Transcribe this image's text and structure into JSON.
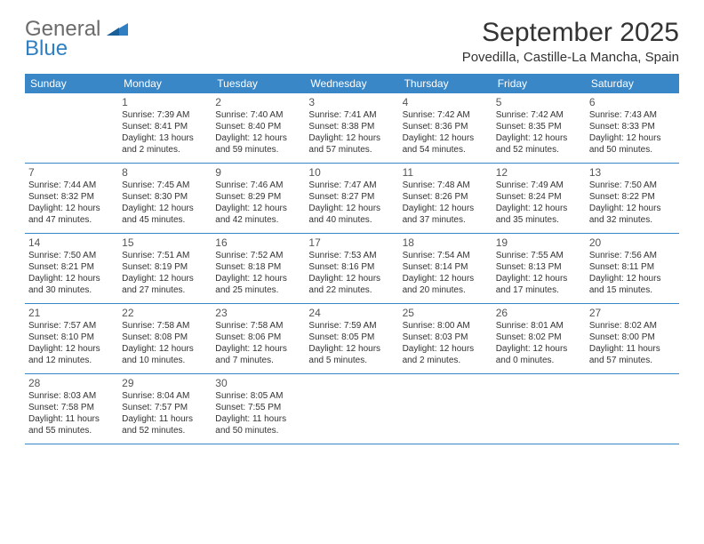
{
  "brand": {
    "part1": "General",
    "part2": "Blue"
  },
  "title": "September 2025",
  "location": "Povedilla, Castille-La Mancha, Spain",
  "colors": {
    "header_bg": "#3a87c8",
    "header_text": "#ffffff",
    "border": "#3a87c8",
    "text": "#333333",
    "logo_gray": "#6b6b6b",
    "logo_blue": "#2f7fc2",
    "background": "#ffffff"
  },
  "fonts": {
    "title_size": 30,
    "location_size": 15,
    "weekday_size": 12,
    "daynum_size": 12,
    "body_size": 10
  },
  "weekdays": [
    "Sunday",
    "Monday",
    "Tuesday",
    "Wednesday",
    "Thursday",
    "Friday",
    "Saturday"
  ],
  "weeks": [
    [
      null,
      {
        "n": "1",
        "sr": "Sunrise: 7:39 AM",
        "ss": "Sunset: 8:41 PM",
        "dl": "Daylight: 13 hours and 2 minutes."
      },
      {
        "n": "2",
        "sr": "Sunrise: 7:40 AM",
        "ss": "Sunset: 8:40 PM",
        "dl": "Daylight: 12 hours and 59 minutes."
      },
      {
        "n": "3",
        "sr": "Sunrise: 7:41 AM",
        "ss": "Sunset: 8:38 PM",
        "dl": "Daylight: 12 hours and 57 minutes."
      },
      {
        "n": "4",
        "sr": "Sunrise: 7:42 AM",
        "ss": "Sunset: 8:36 PM",
        "dl": "Daylight: 12 hours and 54 minutes."
      },
      {
        "n": "5",
        "sr": "Sunrise: 7:42 AM",
        "ss": "Sunset: 8:35 PM",
        "dl": "Daylight: 12 hours and 52 minutes."
      },
      {
        "n": "6",
        "sr": "Sunrise: 7:43 AM",
        "ss": "Sunset: 8:33 PM",
        "dl": "Daylight: 12 hours and 50 minutes."
      }
    ],
    [
      {
        "n": "7",
        "sr": "Sunrise: 7:44 AM",
        "ss": "Sunset: 8:32 PM",
        "dl": "Daylight: 12 hours and 47 minutes."
      },
      {
        "n": "8",
        "sr": "Sunrise: 7:45 AM",
        "ss": "Sunset: 8:30 PM",
        "dl": "Daylight: 12 hours and 45 minutes."
      },
      {
        "n": "9",
        "sr": "Sunrise: 7:46 AM",
        "ss": "Sunset: 8:29 PM",
        "dl": "Daylight: 12 hours and 42 minutes."
      },
      {
        "n": "10",
        "sr": "Sunrise: 7:47 AM",
        "ss": "Sunset: 8:27 PM",
        "dl": "Daylight: 12 hours and 40 minutes."
      },
      {
        "n": "11",
        "sr": "Sunrise: 7:48 AM",
        "ss": "Sunset: 8:26 PM",
        "dl": "Daylight: 12 hours and 37 minutes."
      },
      {
        "n": "12",
        "sr": "Sunrise: 7:49 AM",
        "ss": "Sunset: 8:24 PM",
        "dl": "Daylight: 12 hours and 35 minutes."
      },
      {
        "n": "13",
        "sr": "Sunrise: 7:50 AM",
        "ss": "Sunset: 8:22 PM",
        "dl": "Daylight: 12 hours and 32 minutes."
      }
    ],
    [
      {
        "n": "14",
        "sr": "Sunrise: 7:50 AM",
        "ss": "Sunset: 8:21 PM",
        "dl": "Daylight: 12 hours and 30 minutes."
      },
      {
        "n": "15",
        "sr": "Sunrise: 7:51 AM",
        "ss": "Sunset: 8:19 PM",
        "dl": "Daylight: 12 hours and 27 minutes."
      },
      {
        "n": "16",
        "sr": "Sunrise: 7:52 AM",
        "ss": "Sunset: 8:18 PM",
        "dl": "Daylight: 12 hours and 25 minutes."
      },
      {
        "n": "17",
        "sr": "Sunrise: 7:53 AM",
        "ss": "Sunset: 8:16 PM",
        "dl": "Daylight: 12 hours and 22 minutes."
      },
      {
        "n": "18",
        "sr": "Sunrise: 7:54 AM",
        "ss": "Sunset: 8:14 PM",
        "dl": "Daylight: 12 hours and 20 minutes."
      },
      {
        "n": "19",
        "sr": "Sunrise: 7:55 AM",
        "ss": "Sunset: 8:13 PM",
        "dl": "Daylight: 12 hours and 17 minutes."
      },
      {
        "n": "20",
        "sr": "Sunrise: 7:56 AM",
        "ss": "Sunset: 8:11 PM",
        "dl": "Daylight: 12 hours and 15 minutes."
      }
    ],
    [
      {
        "n": "21",
        "sr": "Sunrise: 7:57 AM",
        "ss": "Sunset: 8:10 PM",
        "dl": "Daylight: 12 hours and 12 minutes."
      },
      {
        "n": "22",
        "sr": "Sunrise: 7:58 AM",
        "ss": "Sunset: 8:08 PM",
        "dl": "Daylight: 12 hours and 10 minutes."
      },
      {
        "n": "23",
        "sr": "Sunrise: 7:58 AM",
        "ss": "Sunset: 8:06 PM",
        "dl": "Daylight: 12 hours and 7 minutes."
      },
      {
        "n": "24",
        "sr": "Sunrise: 7:59 AM",
        "ss": "Sunset: 8:05 PM",
        "dl": "Daylight: 12 hours and 5 minutes."
      },
      {
        "n": "25",
        "sr": "Sunrise: 8:00 AM",
        "ss": "Sunset: 8:03 PM",
        "dl": "Daylight: 12 hours and 2 minutes."
      },
      {
        "n": "26",
        "sr": "Sunrise: 8:01 AM",
        "ss": "Sunset: 8:02 PM",
        "dl": "Daylight: 12 hours and 0 minutes."
      },
      {
        "n": "27",
        "sr": "Sunrise: 8:02 AM",
        "ss": "Sunset: 8:00 PM",
        "dl": "Daylight: 11 hours and 57 minutes."
      }
    ],
    [
      {
        "n": "28",
        "sr": "Sunrise: 8:03 AM",
        "ss": "Sunset: 7:58 PM",
        "dl": "Daylight: 11 hours and 55 minutes."
      },
      {
        "n": "29",
        "sr": "Sunrise: 8:04 AM",
        "ss": "Sunset: 7:57 PM",
        "dl": "Daylight: 11 hours and 52 minutes."
      },
      {
        "n": "30",
        "sr": "Sunrise: 8:05 AM",
        "ss": "Sunset: 7:55 PM",
        "dl": "Daylight: 11 hours and 50 minutes."
      },
      null,
      null,
      null,
      null
    ]
  ]
}
